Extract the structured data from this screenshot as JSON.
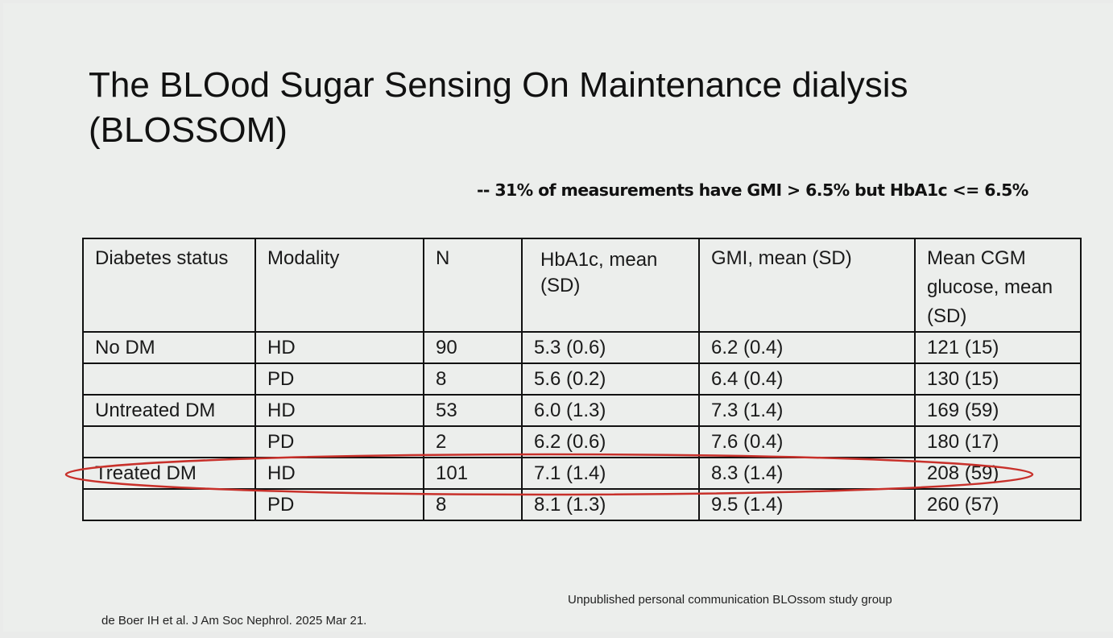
{
  "slide": {
    "title": "The BLOod Sugar Sensing On Maintenance dialysis (BLOSSOM)",
    "subtitle": "-- 31% of measurements have GMI > 6.5% but HbA1c <= 6.5%",
    "footnote_right": "Unpublished personal communication BLOssom study group",
    "footnote_left": "de Boer IH et al.  J Am Soc Nephrol. 2025 Mar 21."
  },
  "table": {
    "headers": [
      "Diabetes status",
      "Modality",
      "N",
      "HbA1c, mean (SD)",
      "GMI, mean (SD)",
      "Mean CGM glucose, mean (SD)"
    ],
    "rows": [
      [
        "No DM",
        "HD",
        "90",
        "5.3 (0.6)",
        "6.2 (0.4)",
        "121 (15)"
      ],
      [
        "",
        "PD",
        "8",
        "5.6 (0.2)",
        "6.4 (0.4)",
        "130 (15)"
      ],
      [
        "Untreated DM",
        "HD",
        "53",
        "6.0 (1.3)",
        "7.3 (1.4)",
        "169 (59)"
      ],
      [
        "",
        "PD",
        "2",
        "6.2 (0.6)",
        "7.6 (0.4)",
        "180 (17)"
      ],
      [
        "Treated DM",
        "HD",
        "101",
        "7.1 (1.4)",
        "8.3 (1.4)",
        "208 (59)"
      ],
      [
        "",
        "PD",
        "8",
        "8.1 (1.3)",
        "9.5 (1.4)",
        "260 (57)"
      ]
    ],
    "highlighted_row": 4
  },
  "colors": {
    "background": "#eceeec",
    "text": "#111111",
    "highlight_oval": "#c8302a"
  }
}
